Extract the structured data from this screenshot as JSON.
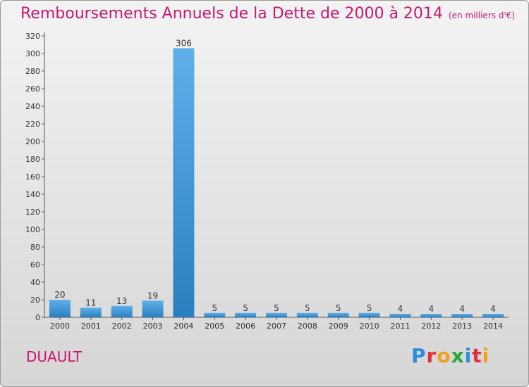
{
  "header": {
    "title": "Remboursements Annuels de la Dette de 2000 à 2014",
    "subtitle": "(en milliers d'€)"
  },
  "footer": {
    "commune": "DUAULT",
    "logo": "Proxiti"
  },
  "colors": {
    "title": "#c8186e",
    "bar_top": "#5fb0ea",
    "bar_bottom": "#2a7fc0"
  },
  "chart_data": {
    "type": "bar",
    "title": "Remboursements Annuels de la Dette de 2000 à 2014",
    "ylabel": "en milliers d'€",
    "xlabel": "",
    "categories": [
      "2000",
      "2001",
      "2002",
      "2003",
      "2004",
      "2005",
      "2006",
      "2007",
      "2008",
      "2009",
      "2010",
      "2011",
      "2012",
      "2013",
      "2014"
    ],
    "values": [
      20,
      11,
      13,
      19,
      306,
      5,
      5,
      5,
      5,
      5,
      5,
      4,
      4,
      4,
      4
    ],
    "ylim": [
      0,
      320
    ],
    "yticks": [
      0,
      20,
      40,
      60,
      80,
      100,
      120,
      140,
      160,
      180,
      200,
      220,
      240,
      260,
      280,
      300,
      320
    ],
    "grid": false
  }
}
